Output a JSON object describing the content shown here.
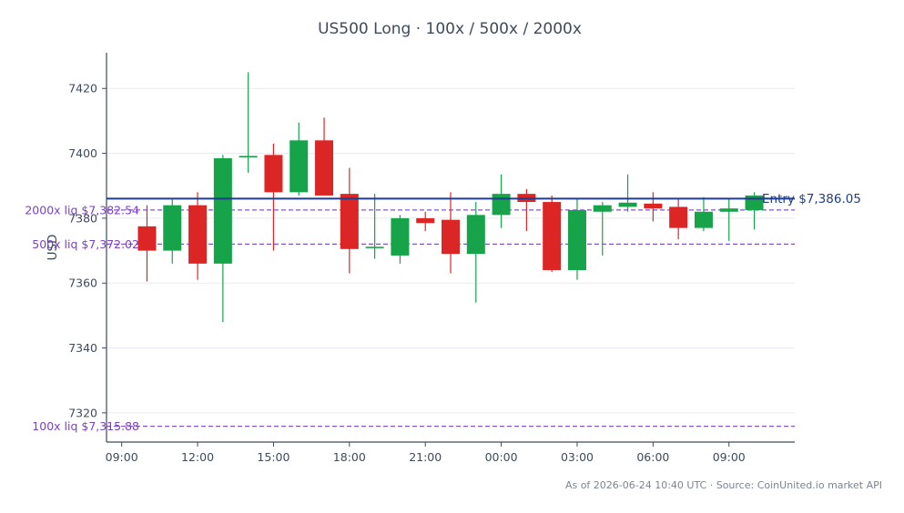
{
  "chart_data": {
    "type": "candlestick",
    "title": "US500 Long · 100x / 500x / 2000x",
    "ylabel": "USD",
    "xlabel": "",
    "ylim": [
      7311,
      7431
    ],
    "yticks": [
      7320,
      7340,
      7360,
      7380,
      7400,
      7420
    ],
    "x_range_hours": [
      -0.6,
      26.6
    ],
    "xticks": [
      {
        "label": "09:00",
        "hour": 0
      },
      {
        "label": "12:00",
        "hour": 3
      },
      {
        "label": "15:00",
        "hour": 6
      },
      {
        "label": "18:00",
        "hour": 9
      },
      {
        "label": "21:00",
        "hour": 12
      },
      {
        "label": "00:00",
        "hour": 15
      },
      {
        "label": "03:00",
        "hour": 18
      },
      {
        "label": "06:00",
        "hour": 21
      },
      {
        "label": "09:00",
        "hour": 24
      }
    ],
    "grid": "horizontal",
    "colors": {
      "up": "#16a34a",
      "down": "#dc2626",
      "entry": "#1f3d8a",
      "liq": "#8b4fd6"
    },
    "candles": [
      {
        "time": "10:00",
        "open": 7377.5,
        "high": 7384,
        "low": 7360.5,
        "close": 7370
      },
      {
        "time": "11:00",
        "open": 7370,
        "high": 7386,
        "low": 7366,
        "close": 7384
      },
      {
        "time": "12:00",
        "open": 7384,
        "high": 7388,
        "low": 7361,
        "close": 7366
      },
      {
        "time": "13:00",
        "open": 7366,
        "high": 7399.5,
        "low": 7348,
        "close": 7398.5
      },
      {
        "time": "14:00",
        "open": 7398.8,
        "high": 7425,
        "low": 7394,
        "close": 7399.2
      },
      {
        "time": "15:00",
        "open": 7399.5,
        "high": 7403,
        "low": 7370,
        "close": 7388
      },
      {
        "time": "16:00",
        "open": 7388,
        "high": 7409.5,
        "low": 7387,
        "close": 7404
      },
      {
        "time": "17:00",
        "open": 7404,
        "high": 7411,
        "low": 7387,
        "close": 7387
      },
      {
        "time": "18:00",
        "open": 7387.5,
        "high": 7395.5,
        "low": 7363,
        "close": 7370.5
      },
      {
        "time": "19:00",
        "open": 7370.8,
        "high": 7387.5,
        "low": 7367.5,
        "close": 7371.2
      },
      {
        "time": "20:00",
        "open": 7368.5,
        "high": 7381,
        "low": 7366,
        "close": 7380
      },
      {
        "time": "21:00",
        "open": 7380,
        "high": 7382,
        "low": 7376,
        "close": 7378.5
      },
      {
        "time": "22:00",
        "open": 7379.5,
        "high": 7388,
        "low": 7363,
        "close": 7369
      },
      {
        "time": "23:00",
        "open": 7369,
        "high": 7385,
        "low": 7354,
        "close": 7381
      },
      {
        "time": "00:00",
        "open": 7381,
        "high": 7393.5,
        "low": 7377,
        "close": 7387.5
      },
      {
        "time": "01:00",
        "open": 7387.5,
        "high": 7389,
        "low": 7376,
        "close": 7385
      },
      {
        "time": "02:00",
        "open": 7385,
        "high": 7387,
        "low": 7363.5,
        "close": 7364
      },
      {
        "time": "03:00",
        "open": 7364,
        "high": 7386,
        "low": 7361,
        "close": 7382.5
      },
      {
        "time": "04:00",
        "open": 7382,
        "high": 7385,
        "low": 7368.5,
        "close": 7384
      },
      {
        "time": "05:00",
        "open": 7383.5,
        "high": 7393.5,
        "low": 7382,
        "close": 7384.8
      },
      {
        "time": "06:00",
        "open": 7384.5,
        "high": 7388,
        "low": 7379,
        "close": 7383
      },
      {
        "time": "07:00",
        "open": 7383.5,
        "high": 7386,
        "low": 7373.5,
        "close": 7377
      },
      {
        "time": "08:00",
        "open": 7377,
        "high": 7386.5,
        "low": 7376,
        "close": 7382
      },
      {
        "time": "09:00",
        "open": 7382,
        "high": 7386,
        "low": 7373,
        "close": 7383
      },
      {
        "time": "10:00",
        "open": 7382.5,
        "high": 7388,
        "low": 7376.5,
        "close": 7387
      }
    ],
    "entry": {
      "label": "Entry $7,386.05",
      "value": 7386.05
    },
    "liquidation_levels": [
      {
        "label": "2000x liq $7,382.54",
        "value": 7382.54
      },
      {
        "label": "500x liq $7,372.02",
        "value": 7372.02
      },
      {
        "label": "100x liq $7,315.88",
        "value": 7315.88
      }
    ]
  },
  "footer": "As of 2026-06-24 10:40 UTC · Source: CoinUnited.io market API"
}
